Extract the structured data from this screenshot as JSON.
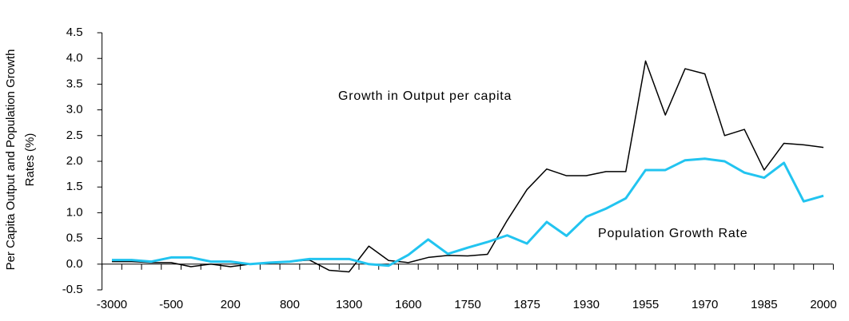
{
  "chart_data": {
    "type": "line",
    "y_label": [
      "Per Capita Output and Population Growth",
      "Rates (%)"
    ],
    "annotations": [
      "Growth in Output per capita",
      "Population Growth Rate"
    ],
    "categories": [
      "-3000",
      null,
      null,
      "-500",
      null,
      null,
      "200",
      null,
      null,
      "800",
      null,
      null,
      "1300",
      null,
      null,
      "1600",
      null,
      null,
      "1750",
      null,
      null,
      "1875",
      null,
      null,
      "1930",
      null,
      null,
      "1955",
      null,
      null,
      "1970",
      null,
      null,
      "1985",
      null,
      null,
      "2000"
    ],
    "series": [
      {
        "name": "Growth in Output per capita",
        "color": "#000000",
        "values": [
          0.05,
          0.05,
          0.03,
          0.03,
          -0.05,
          0.0,
          -0.05,
          0.0,
          0.02,
          0.05,
          0.08,
          -0.12,
          -0.15,
          0.35,
          0.07,
          0.03,
          0.13,
          0.17,
          0.16,
          0.19,
          0.85,
          1.45,
          1.85,
          1.72,
          1.72,
          1.8,
          1.8,
          3.95,
          2.9,
          3.8,
          3.7,
          2.5,
          2.62,
          1.83,
          2.35,
          2.32,
          2.27
        ]
      },
      {
        "name": "Population Growth Rate",
        "color": "#22c4f0",
        "values": [
          0.08,
          0.08,
          0.05,
          0.13,
          0.13,
          0.05,
          0.05,
          0.0,
          0.03,
          0.05,
          0.1,
          0.1,
          0.1,
          0.0,
          -0.03,
          0.18,
          0.48,
          0.2,
          0.32,
          0.43,
          0.56,
          0.4,
          0.82,
          0.55,
          0.92,
          1.08,
          1.28,
          1.83,
          1.83,
          2.02,
          2.05,
          2.0,
          1.78,
          1.68,
          1.97,
          1.22,
          1.33
        ]
      }
    ],
    "ylim": [
      -0.5,
      4.5
    ],
    "yticks": [
      -0.5,
      {
        "value": 0,
        "label": "0.0"
      },
      0.5,
      {
        "value": 1,
        "label": "1.0"
      },
      1.5,
      {
        "value": 2,
        "label": "2.0"
      },
      2.5,
      {
        "value": 3,
        "label": "3.0"
      },
      3.5,
      {
        "value": 4,
        "label": "4.0"
      },
      4.5
    ]
  }
}
